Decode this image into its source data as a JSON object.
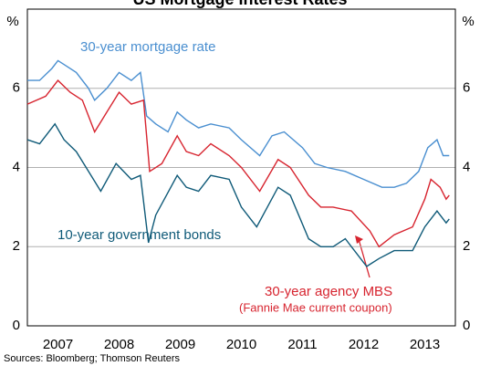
{
  "chart_data": {
    "type": "line",
    "title": "US Mortgage Interest Rates",
    "y_label_left": "%",
    "y_label_right": "%",
    "source": "Sources: Bloomberg; Thomson Reuters",
    "annotation": "(Fannie Mae current coupon)",
    "xlim": [
      2007,
      2014
    ],
    "xticks": [
      {
        "value": 2007.5,
        "label": "2007"
      },
      {
        "value": 2008.5,
        "label": "2008"
      },
      {
        "value": 2009.5,
        "label": "2009"
      },
      {
        "value": 2010.5,
        "label": "2010"
      },
      {
        "value": 2011.5,
        "label": "2011"
      },
      {
        "value": 2012.5,
        "label": "2012"
      },
      {
        "value": 2013.5,
        "label": "2013"
      }
    ],
    "ylim": [
      0,
      8
    ],
    "yticks": [
      0,
      2,
      4,
      6
    ],
    "grid": true,
    "series": [
      {
        "name": "30-year mortgage rate",
        "color": "#4a8fd0",
        "x": [
          2007.0,
          2007.2,
          2007.4,
          2007.5,
          2007.6,
          2007.8,
          2008.0,
          2008.1,
          2008.3,
          2008.5,
          2008.7,
          2008.85,
          2008.95,
          2009.1,
          2009.3,
          2009.45,
          2009.6,
          2009.8,
          2010.0,
          2010.3,
          2010.5,
          2010.8,
          2011.0,
          2011.2,
          2011.5,
          2011.7,
          2011.9,
          2012.2,
          2012.5,
          2012.8,
          2013.0,
          2013.2,
          2013.4,
          2013.55,
          2013.7,
          2013.8,
          2013.9
        ],
        "values": [
          6.2,
          6.2,
          6.5,
          6.7,
          6.6,
          6.4,
          6.0,
          5.7,
          6.0,
          6.4,
          6.2,
          6.4,
          5.3,
          5.1,
          4.9,
          5.4,
          5.2,
          5.0,
          5.1,
          5.0,
          4.7,
          4.3,
          4.8,
          4.9,
          4.5,
          4.1,
          4.0,
          3.9,
          3.7,
          3.5,
          3.5,
          3.6,
          3.9,
          4.5,
          4.7,
          4.3,
          4.3
        ]
      },
      {
        "name": "30-year agency MBS",
        "color": "#d7242f",
        "x": [
          2007.0,
          2007.3,
          2007.5,
          2007.7,
          2007.9,
          2008.1,
          2008.3,
          2008.5,
          2008.7,
          2008.9,
          2009.0,
          2009.2,
          2009.45,
          2009.6,
          2009.8,
          2010.0,
          2010.3,
          2010.5,
          2010.8,
          2011.1,
          2011.3,
          2011.6,
          2011.8,
          2012.0,
          2012.3,
          2012.6,
          2012.75,
          2013.0,
          2013.3,
          2013.5,
          2013.6,
          2013.75,
          2013.85,
          2013.9
        ],
        "values": [
          5.6,
          5.8,
          6.2,
          5.9,
          5.7,
          4.9,
          5.4,
          5.9,
          5.6,
          5.7,
          3.9,
          4.1,
          4.8,
          4.4,
          4.3,
          4.6,
          4.3,
          4.0,
          3.4,
          4.2,
          4.0,
          3.3,
          3.0,
          3.0,
          2.9,
          2.4,
          2.0,
          2.3,
          2.5,
          3.2,
          3.7,
          3.5,
          3.2,
          3.3
        ]
      },
      {
        "name": "10-year government bonds",
        "color": "#0f5a78",
        "x": [
          2007.0,
          2007.2,
          2007.45,
          2007.6,
          2007.8,
          2008.0,
          2008.2,
          2008.45,
          2008.7,
          2008.85,
          2008.98,
          2009.1,
          2009.45,
          2009.6,
          2009.8,
          2010.0,
          2010.3,
          2010.5,
          2010.75,
          2011.1,
          2011.3,
          2011.6,
          2011.8,
          2012.0,
          2012.2,
          2012.55,
          2012.75,
          2013.0,
          2013.3,
          2013.5,
          2013.7,
          2013.85,
          2013.9
        ],
        "values": [
          4.7,
          4.6,
          5.1,
          4.7,
          4.4,
          3.9,
          3.4,
          4.1,
          3.7,
          3.8,
          2.1,
          2.8,
          3.8,
          3.5,
          3.4,
          3.8,
          3.7,
          3.0,
          2.5,
          3.5,
          3.3,
          2.2,
          2.0,
          2.0,
          2.2,
          1.5,
          1.7,
          1.9,
          1.9,
          2.5,
          2.9,
          2.6,
          2.7
        ]
      }
    ]
  }
}
